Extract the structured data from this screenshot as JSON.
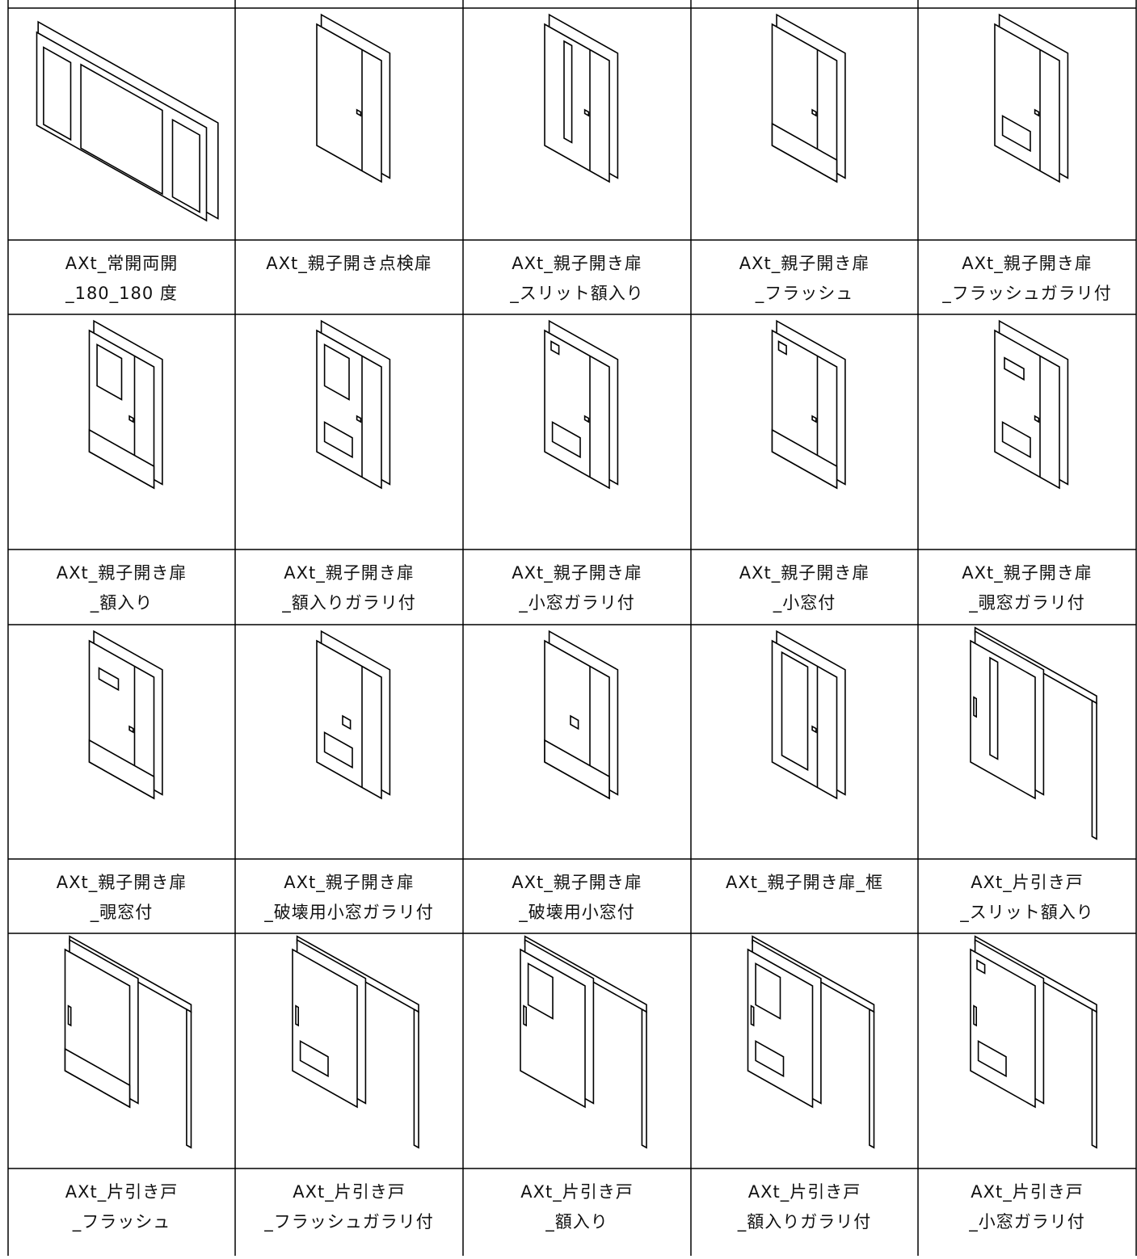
{
  "table": {
    "rows": [
      [
        [
          "AXt_常開両開",
          "_180_180 度"
        ],
        [
          "AXt_親子開き点検扉"
        ],
        [
          "AXt_親子開き扉",
          "_スリット額入り"
        ],
        [
          "AXt_親子開き扉",
          "_フラッシュ"
        ],
        [
          "AXt_親子開き扉",
          "_フラッシュガラリ付"
        ]
      ],
      [
        [
          "AXt_親子開き扉",
          "_額入り"
        ],
        [
          "AXt_親子開き扉",
          "_額入りガラリ付"
        ],
        [
          "AXt_親子開き扉",
          "_小窓ガラリ付"
        ],
        [
          "AXt_親子開き扉",
          "_小窓付"
        ],
        [
          "AXt_親子開き扉",
          "_覗窓ガラリ付"
        ]
      ],
      [
        [
          "AXt_親子開き扉",
          "_覗窓付"
        ],
        [
          "AXt_親子開き扉",
          "_破壊用小窓ガラリ付"
        ],
        [
          "AXt_親子開き扉",
          "_破壊用小窓付"
        ],
        [
          "AXt_親子開き扉_框"
        ],
        [
          "AXt_片引き戸",
          "_スリット額入り"
        ]
      ],
      [
        [
          "AXt_片引き戸",
          "_フラッシュ"
        ],
        [
          "AXt_片引き戸",
          "_フラッシュガラリ付"
        ],
        [
          "AXt_片引き戸",
          "_額入り"
        ],
        [
          "AXt_片引き戸",
          "_額入りガラリ付"
        ],
        [
          "AXt_片引き戸",
          "_小窓ガラリ付"
        ]
      ]
    ]
  }
}
